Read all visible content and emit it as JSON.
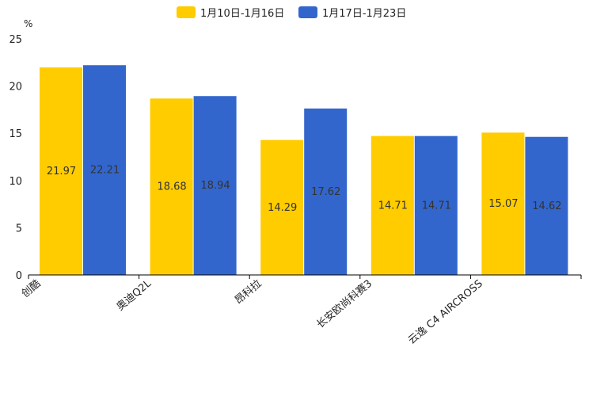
{
  "chart_data": {
    "type": "bar",
    "title": "",
    "xlabel": "",
    "ylabel": "%",
    "ylim": [
      0,
      25
    ],
    "yticks": [
      0,
      5,
      10,
      15,
      20,
      25
    ],
    "grid": false,
    "legend_position": "top-center",
    "categories": [
      "创酷",
      "奥迪Q2L",
      "昂科拉",
      "长安欧尚科赛3",
      "云逸 C4 AIRCROSS"
    ],
    "series": [
      {
        "name": "1月10日-1月16日",
        "color": "#FFCC00",
        "values": [
          21.97,
          18.68,
          14.29,
          14.71,
          15.07
        ]
      },
      {
        "name": "1月17日-1月23日",
        "color": "#3366CC",
        "values": [
          22.21,
          18.94,
          17.62,
          14.71,
          14.62
        ]
      }
    ]
  }
}
